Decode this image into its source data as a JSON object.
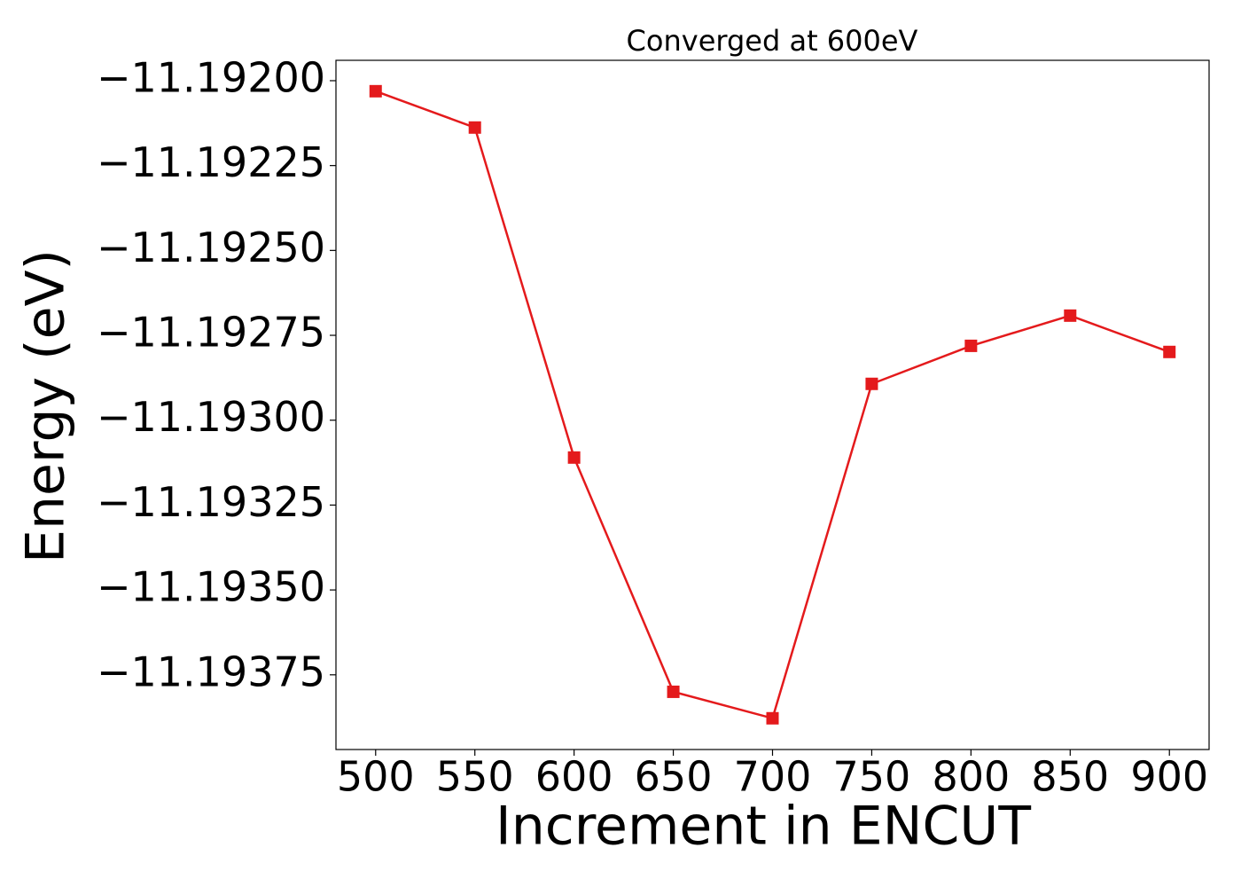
{
  "chart_data": {
    "type": "line",
    "title": "Converged at 600eV",
    "x_label": "Increment in ENCUT",
    "y_label": "Energy (eV)",
    "x": [
      500,
      550,
      600,
      650,
      700,
      750,
      800,
      850,
      900
    ],
    "values": [
      -11.192031,
      -11.192138,
      -11.19311,
      -11.1938,
      -11.193878,
      -11.192893,
      -11.192781,
      -11.192692,
      -11.192799
    ],
    "color": "#e41a1c",
    "marker": "square",
    "xlim": [
      480,
      920
    ],
    "xticks": [
      500,
      550,
      600,
      650,
      700,
      750,
      800,
      850,
      900
    ],
    "ylim": [
      -11.19397,
      -11.19194
    ],
    "yticks": [
      {
        "value": -11.192,
        "label": "−11.19200"
      },
      {
        "value": -11.19225,
        "label": "−11.19225"
      },
      {
        "value": -11.1925,
        "label": "−11.19250"
      },
      {
        "value": -11.19275,
        "label": "−11.19275"
      },
      {
        "value": -11.193,
        "label": "−11.19300"
      },
      {
        "value": -11.19325,
        "label": "−11.19325"
      },
      {
        "value": -11.1935,
        "label": "−11.19350"
      },
      {
        "value": -11.19375,
        "label": "−11.19375"
      }
    ],
    "grid": false
  }
}
